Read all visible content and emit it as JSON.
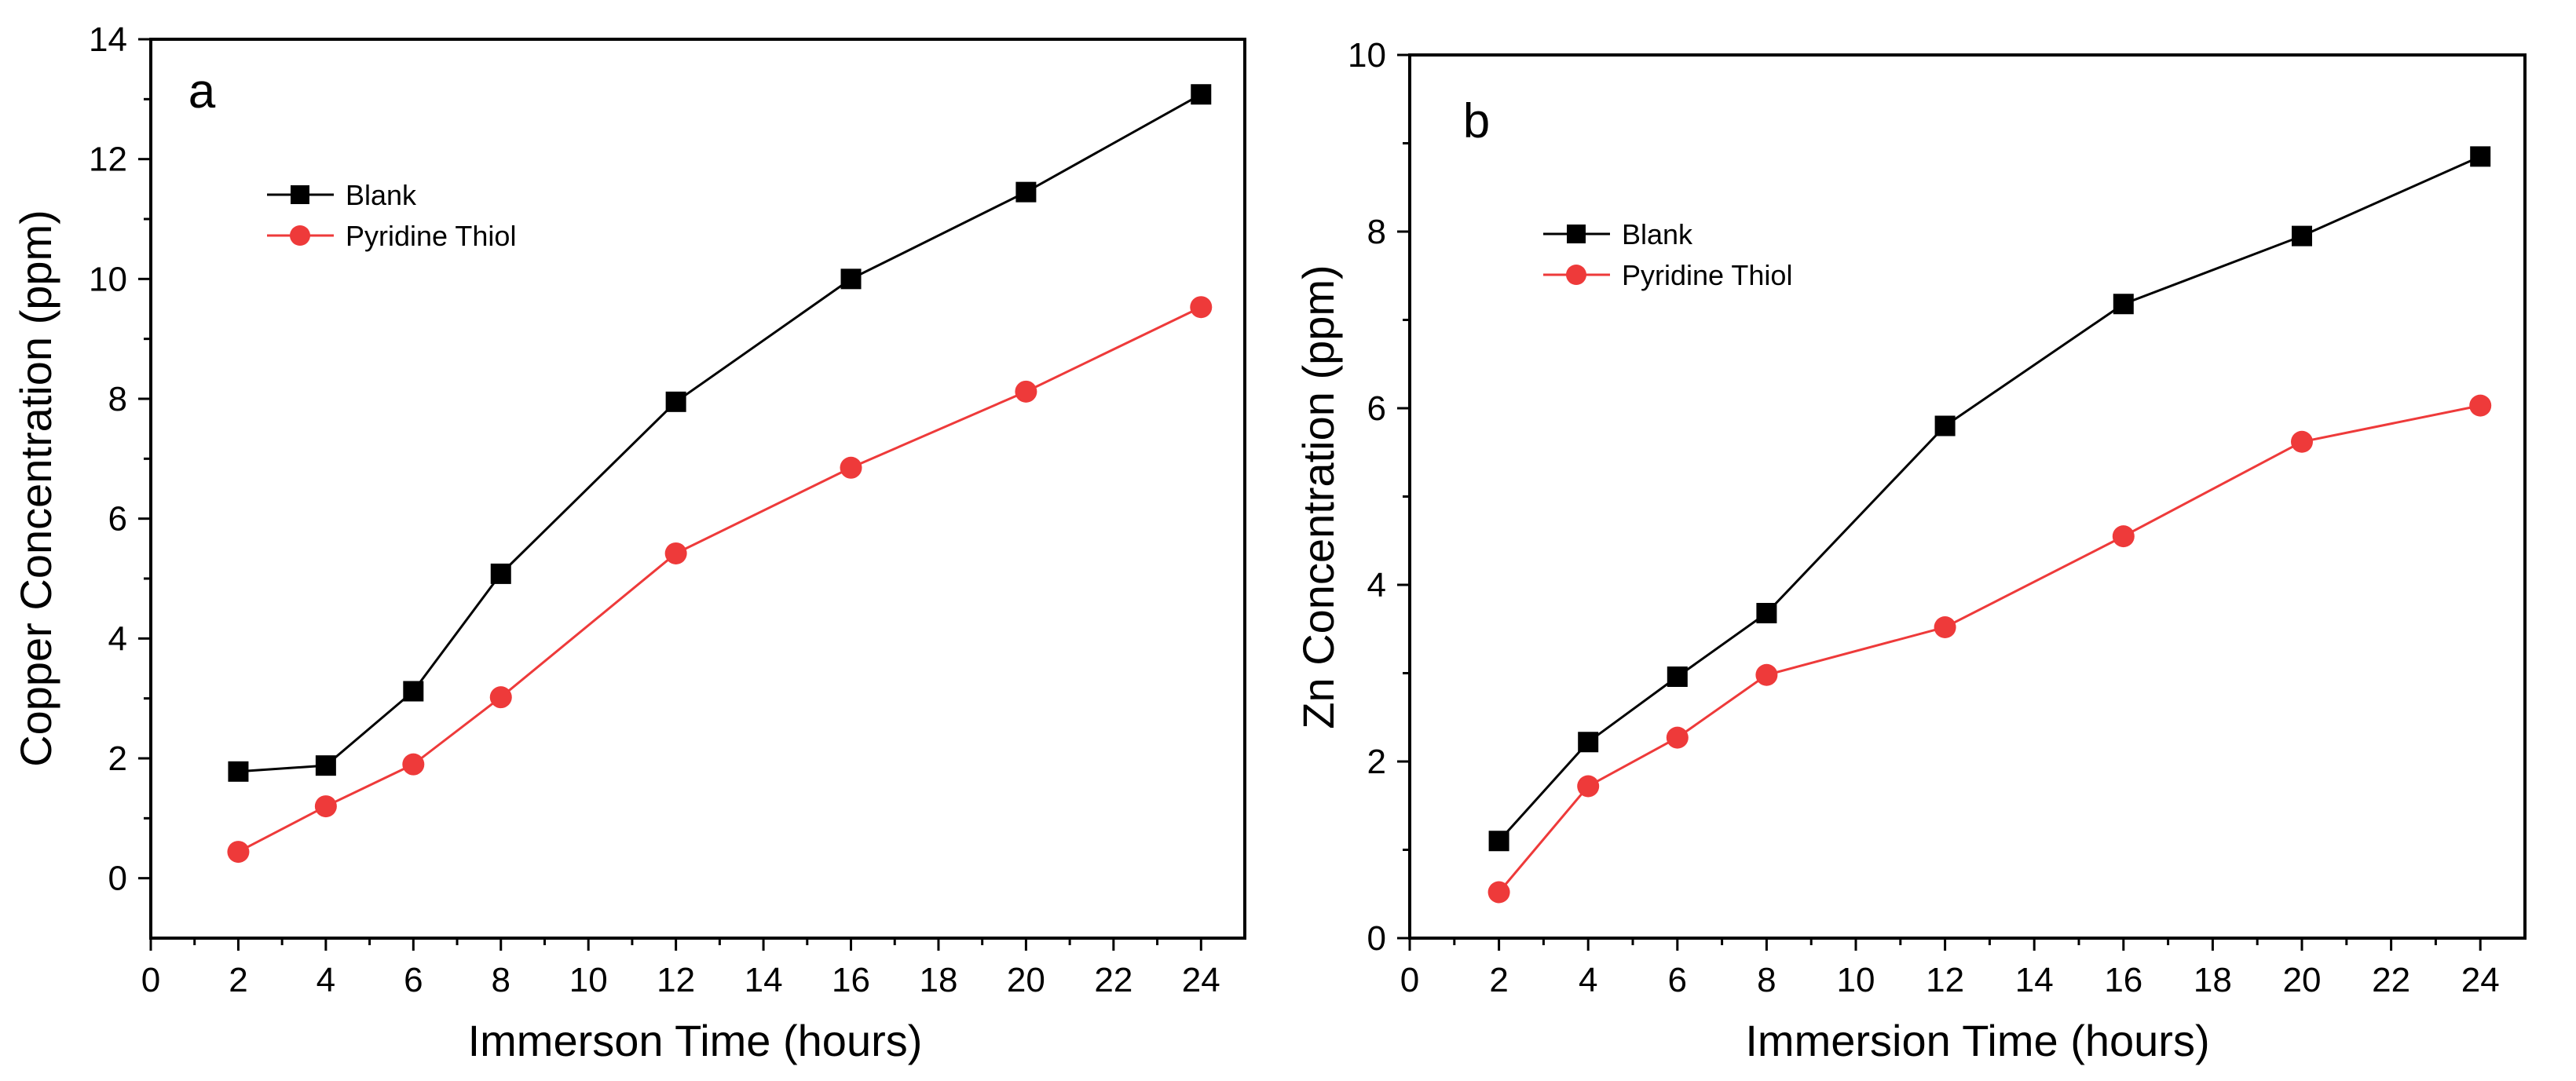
{
  "chart_data": [
    {
      "type": "line",
      "panel_label": "a",
      "xlabel": "Immerson Time (hours)",
      "ylabel": "Copper Concentration (ppm)",
      "xlim": [
        0,
        25
      ],
      "ylim": [
        -1,
        14
      ],
      "xticks": [
        0,
        2,
        4,
        6,
        8,
        10,
        12,
        14,
        16,
        18,
        20,
        22,
        24
      ],
      "yticks": [
        0,
        2,
        4,
        6,
        8,
        10,
        12,
        14
      ],
      "x": [
        2,
        4,
        6,
        8,
        12,
        16,
        20,
        24
      ],
      "series": [
        {
          "name": "Blank",
          "color": "#000000",
          "marker": "square",
          "values": [
            1.78,
            1.88,
            3.12,
            5.08,
            7.95,
            10.0,
            11.45,
            13.08
          ]
        },
        {
          "name": "Pyridine Thiol",
          "color": "#ee3a3a",
          "marker": "circle",
          "values": [
            0.44,
            1.2,
            1.9,
            3.02,
            5.42,
            6.85,
            8.12,
            9.53
          ]
        }
      ],
      "legend": "upper-left"
    },
    {
      "type": "line",
      "panel_label": "b",
      "xlabel": "Immersion Time (hours)",
      "ylabel": "Zn Concentration (ppm)",
      "xlim": [
        0,
        25
      ],
      "ylim": [
        0,
        10
      ],
      "xticks": [
        0,
        2,
        4,
        6,
        8,
        10,
        12,
        14,
        16,
        18,
        20,
        22,
        24
      ],
      "yticks": [
        0,
        2,
        4,
        6,
        8,
        10
      ],
      "x": [
        2,
        4,
        6,
        8,
        12,
        16,
        20,
        24
      ],
      "series": [
        {
          "name": "Blank",
          "color": "#000000",
          "marker": "square",
          "values": [
            1.1,
            2.22,
            2.96,
            3.68,
            5.8,
            7.18,
            7.95,
            8.85
          ]
        },
        {
          "name": "Pyridine Thiol",
          "color": "#ee3a3a",
          "marker": "circle",
          "values": [
            0.52,
            1.72,
            2.27,
            2.98,
            3.52,
            4.55,
            5.62,
            6.03
          ]
        }
      ],
      "legend": "upper-left"
    }
  ]
}
